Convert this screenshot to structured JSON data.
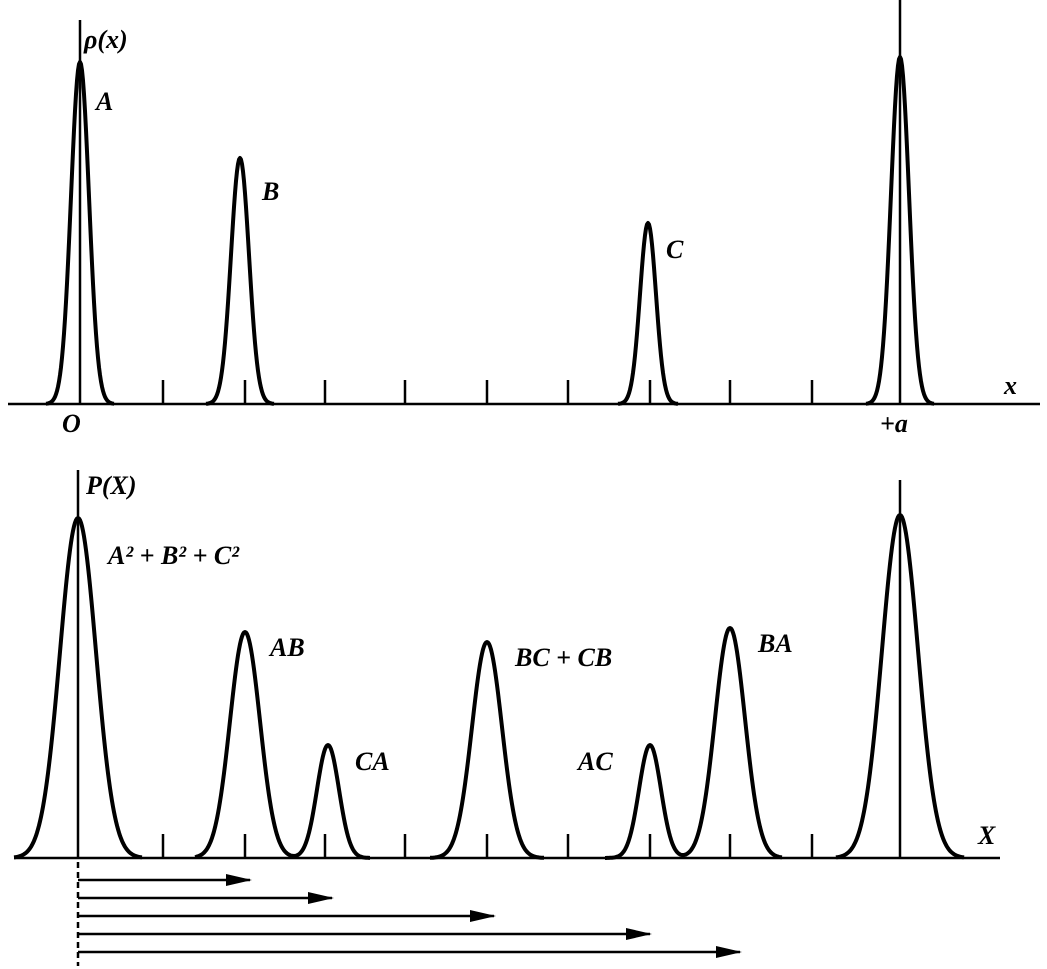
{
  "top": {
    "axis_label": "ρ(x)",
    "x_label": "x",
    "origin_label": "O",
    "end_label": "+a",
    "peaks": [
      "A",
      "B",
      "C"
    ]
  },
  "bottom": {
    "axis_label": "P(X)",
    "x_label": "X",
    "peaks": [
      "A² + B² + C²",
      "AB",
      "CA",
      "BC + CB",
      "AC",
      "BA"
    ]
  }
}
